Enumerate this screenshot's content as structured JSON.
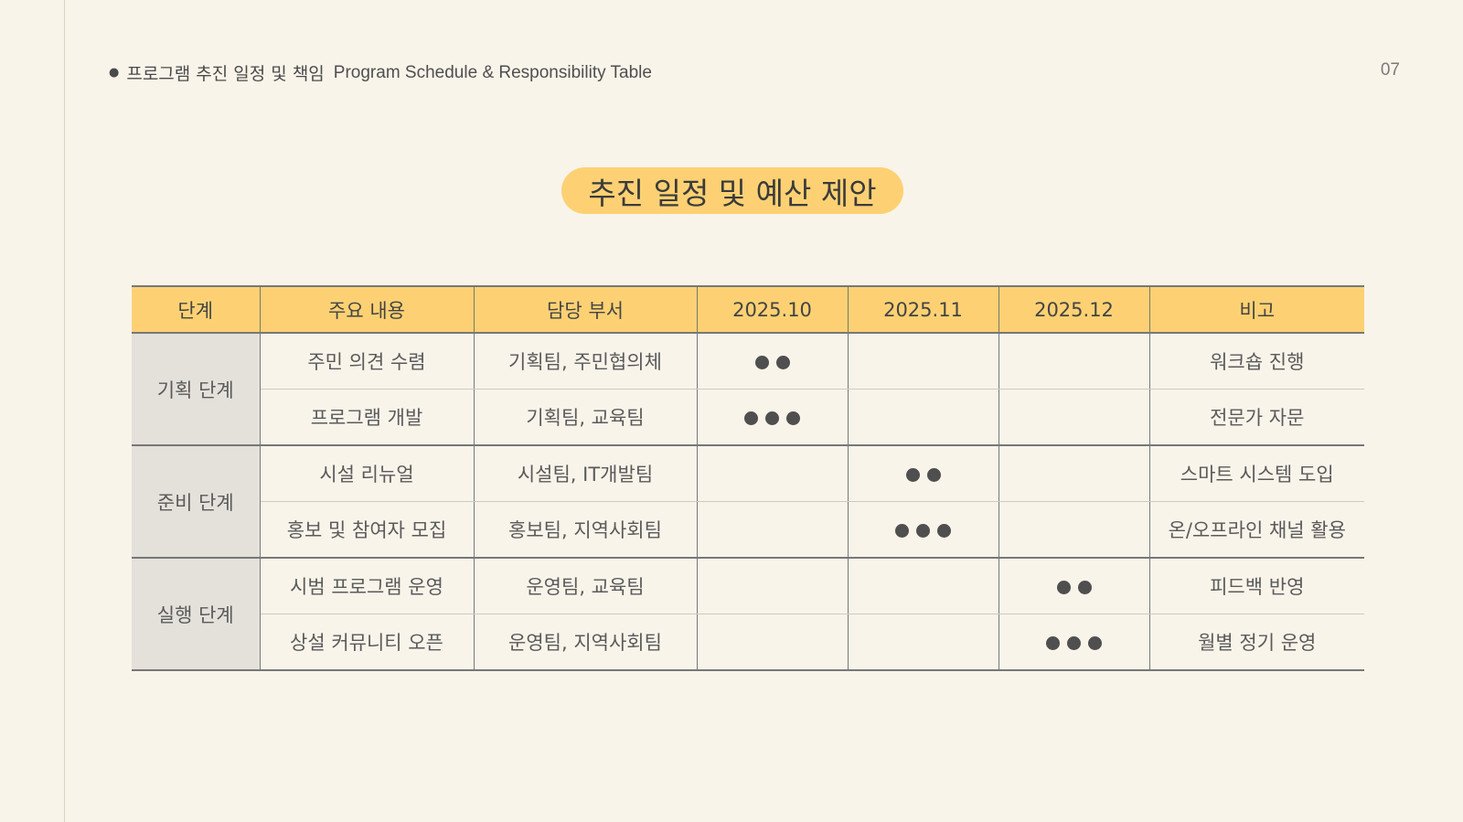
{
  "header": {
    "title_ko": "프로그램 추진 일정 및 책임",
    "title_en": "Program Schedule & Responsibility Table",
    "page_number": "07"
  },
  "title": "추진 일정 및 예산 제안",
  "table": {
    "columns": [
      "단계",
      "주요 내용",
      "담당 부서",
      "2025.10",
      "2025.11",
      "2025.12",
      "비고"
    ],
    "stages": [
      {
        "name": "기획 단계",
        "rows": [
          {
            "content": "주민 의견 수렴",
            "dept": "기획팀, 주민협의체",
            "month_index": 0,
            "dots": 2,
            "note": "워크숍 진행"
          },
          {
            "content": "프로그램 개발",
            "dept": "기획팀, 교육팀",
            "month_index": 0,
            "dots": 3,
            "note": "전문가 자문"
          }
        ]
      },
      {
        "name": "준비 단계",
        "rows": [
          {
            "content": "시설 리뉴얼",
            "dept": "시설팀, IT개발팀",
            "month_index": 1,
            "dots": 2,
            "note": "스마트 시스템 도입"
          },
          {
            "content": "홍보 및 참여자 모집",
            "dept": "홍보팀, 지역사회팀",
            "month_index": 1,
            "dots": 3,
            "note": "온/오프라인 채널 활용"
          }
        ]
      },
      {
        "name": "실행 단계",
        "rows": [
          {
            "content": "시범 프로그램 운영",
            "dept": "운영팀, 교육팀",
            "month_index": 2,
            "dots": 2,
            "note": "피드백 반영"
          },
          {
            "content": "상설 커뮤니티 오픈",
            "dept": "운영팀, 지역사회팀",
            "month_index": 2,
            "dots": 3,
            "note": "월별 정기 운영"
          }
        ]
      }
    ]
  }
}
